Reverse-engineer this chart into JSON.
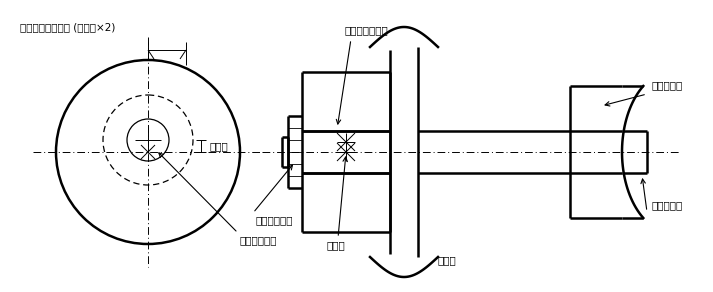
{
  "bg_color": "#ffffff",
  "line_color": "#000000",
  "fig_width": 7.13,
  "fig_height": 2.92,
  "dpi": 100,
  "labels": {
    "top_text": "高さ方向移動距離 (偏芯量×2)",
    "eccentric_left": "偏芯量",
    "hex_label": "六觓レンチ穴",
    "roller_label": "ローラフォロア",
    "eccentric_right": "偏芯量",
    "mounting_plate": "取付板",
    "fixed_nut": "固定ナット",
    "fixed_eccentric_shaft": "固定偏芯軍"
  }
}
